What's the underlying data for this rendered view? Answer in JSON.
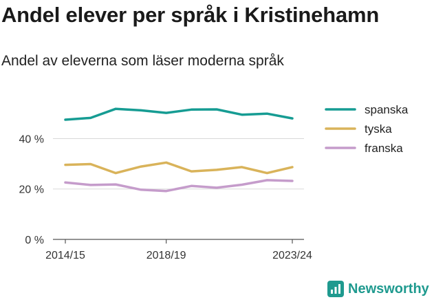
{
  "header": {
    "title": "Andel elever per språk i Kristinehamn",
    "subtitle": "Andel av eleverna som läser moderna språk"
  },
  "brand": {
    "name": "Newsworthy",
    "color": "#1f9a8f",
    "icon": "newsworthy-logo-icon"
  },
  "chart_data": {
    "type": "line",
    "x": [
      "2014/15",
      "2015/16",
      "2016/17",
      "2017/18",
      "2018/19",
      "2019/20",
      "2020/21",
      "2021/22",
      "2022/23",
      "2023/24"
    ],
    "x_tick_labels": [
      "2014/15",
      "2018/19",
      "2023/24"
    ],
    "y_ticks": [
      0,
      20,
      40
    ],
    "y_tick_labels": [
      "0 %",
      "20 %",
      "40 %"
    ],
    "ylim": [
      0,
      55
    ],
    "grid": true,
    "legend_position": "right",
    "series": [
      {
        "name": "spanska",
        "color": "#169c93",
        "values": [
          47.5,
          48.2,
          51.8,
          51.2,
          50.2,
          51.5,
          51.6,
          49.5,
          49.9,
          48.0
        ]
      },
      {
        "name": "tyska",
        "color": "#d9b35a",
        "values": [
          29.6,
          29.9,
          26.3,
          28.9,
          30.5,
          27.0,
          27.6,
          28.7,
          26.3,
          28.7
        ]
      },
      {
        "name": "franska",
        "color": "#c59ccb",
        "values": [
          22.6,
          21.6,
          21.8,
          19.7,
          19.2,
          21.2,
          20.5,
          21.7,
          23.5,
          23.2
        ]
      }
    ]
  }
}
